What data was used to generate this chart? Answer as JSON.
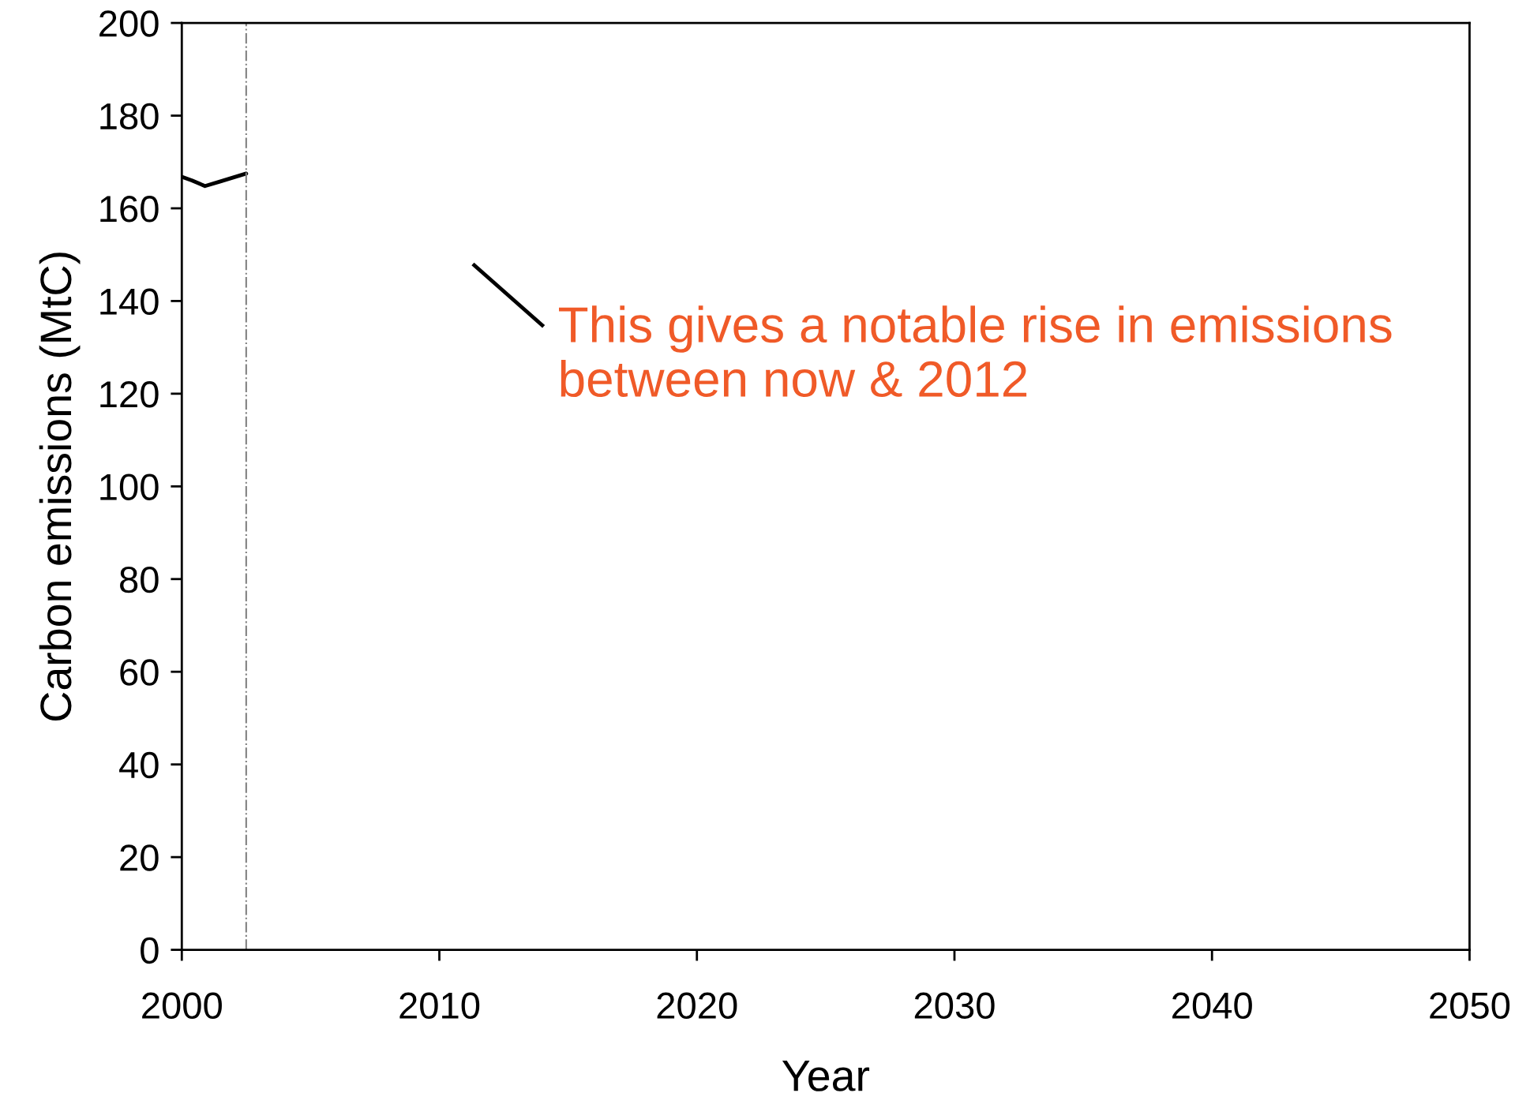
{
  "chart_data": {
    "type": "line",
    "xlabel": "Year",
    "ylabel": "Carbon emissions (MtC)",
    "x": [
      2000,
      2000.4,
      2000.9,
      2001.5,
      2002.5
    ],
    "series": [
      {
        "color": "#000000",
        "values": [
          166.8,
          166.0,
          164.8,
          165.8,
          167.5
        ]
      }
    ],
    "xlim": [
      2000,
      2050
    ],
    "xticks": [
      2000,
      2010,
      2020,
      2030,
      2040,
      2050
    ],
    "ylim": [
      0,
      200
    ],
    "yticks": [
      0,
      20,
      40,
      60,
      80,
      100,
      120,
      140,
      160,
      180,
      200
    ],
    "ref_lines": [
      {
        "axis": "x",
        "value": 2002.5,
        "color": "#808080",
        "line_style": "dashdot"
      }
    ],
    "annotations": [
      "This gives a notable rise in emissions\nbetween now & 2012"
    ],
    "grid": false,
    "legend": false
  }
}
